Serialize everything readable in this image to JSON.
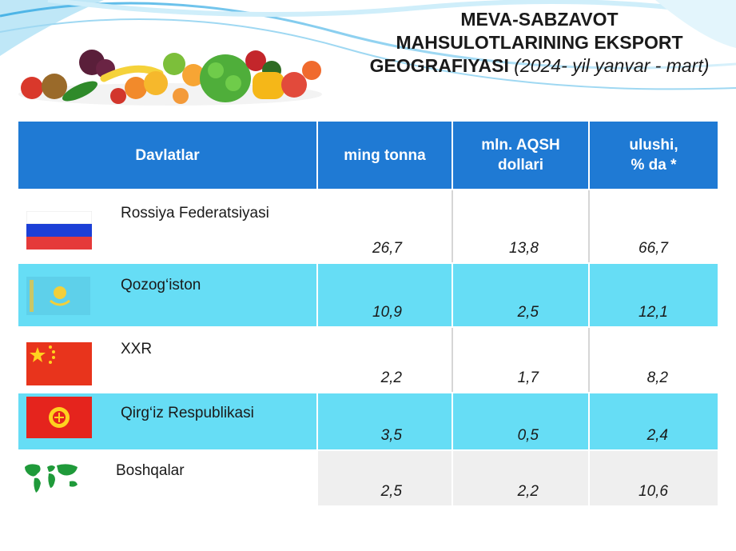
{
  "title": {
    "line1": "MEVA-SABZAVOT",
    "line2": "MAHSULOTLARINING EKSPORT",
    "line3": "GEOGRAFIYASI",
    "period": "(2024- yil yanvar - mart)"
  },
  "table": {
    "headers": {
      "country": "Davlatlar",
      "tonnes": "ming tonna",
      "usd_line1": "mln. AQSH",
      "usd_line2": "dollari",
      "share_line1": "ulushi,",
      "share_line2": "% da *"
    },
    "rows": [
      {
        "country": "Rossiya Federatsiyasi",
        "flag": "russia-flag",
        "tonnes": "26,7",
        "usd": "13,8",
        "share": "66,7"
      },
      {
        "country": "Qozog‘iston",
        "flag": "kazakhstan-flag",
        "tonnes": "10,9",
        "usd": "2,5",
        "share": "12,1"
      },
      {
        "country": "XXR",
        "flag": "china-flag",
        "tonnes": "2,2",
        "usd": "1,7",
        "share": "8,2"
      },
      {
        "country": "Qirg‘iz Respublikasi",
        "flag": "kyrgyzstan-flag",
        "tonnes": "3,5",
        "usd": "0,5",
        "share": "2,4"
      },
      {
        "country": "Boshqalar",
        "flag": "world-map-icon",
        "tonnes": "2,5",
        "usd": "2,2",
        "share": "10,6"
      }
    ]
  },
  "colors": {
    "header": "#1f7ad4",
    "row_highlight": "#66ddf5",
    "row_other": "#efefef"
  }
}
